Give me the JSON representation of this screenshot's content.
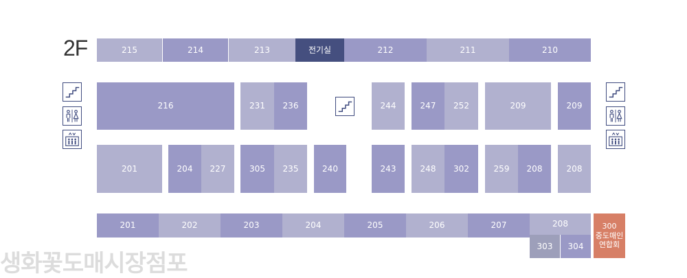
{
  "floor_label": "2F",
  "watermark": "생화꽃도매시장점포",
  "rooms": {
    "r215": "215",
    "r214": "214",
    "r213": "213",
    "elec": "전기실",
    "r212": "212",
    "r211": "211",
    "r210": "210",
    "r216": "216",
    "r231": "231",
    "r236": "236",
    "r244": "244",
    "r247": "247",
    "r252": "252",
    "r209a": "209",
    "r209b": "209",
    "r201a": "201",
    "r204a": "204",
    "r227": "227",
    "r305": "305",
    "r235": "235",
    "r240": "240",
    "r243": "243",
    "r248": "248",
    "r302": "302",
    "r259": "259",
    "r208a": "208",
    "r208b": "208",
    "r201b": "201",
    "r202": "202",
    "r203": "203",
    "r204b": "204",
    "r205": "205",
    "r206": "206",
    "r207": "207",
    "r208c": "208",
    "r303": "303",
    "r304": "304",
    "r300_num": "300",
    "r300_l1": "중도매인",
    "r300_l2": "연합회"
  },
  "icons": [
    "stairs-icon",
    "restroom-icon",
    "elevator-icon"
  ],
  "colors": {
    "light": "#b1b1cf",
    "medium": "#9a99c6",
    "gray": "#9d9fba",
    "navy": "#454f7f",
    "orange": "#d77f66",
    "icon_stroke": "#3e4a7e"
  }
}
